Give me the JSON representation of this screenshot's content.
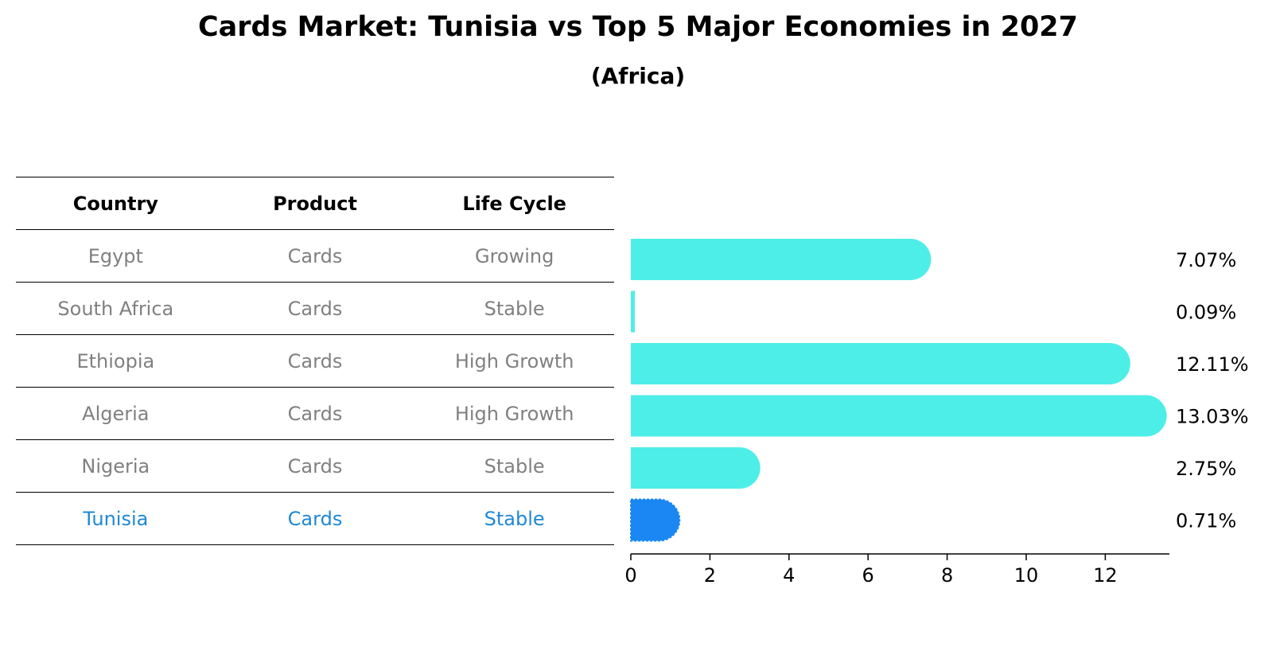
{
  "title": "Cards Market: Tunisia vs Top 5 Major Economies in 2027",
  "subtitle": "(Africa)",
  "table": {
    "headers": [
      "Country",
      "Product",
      "Life Cycle"
    ],
    "rows": [
      [
        "Egypt",
        "Cards",
        "Growing"
      ],
      [
        "South Africa",
        "Cards",
        "Stable"
      ],
      [
        "Ethiopia",
        "Cards",
        "High Growth"
      ],
      [
        "Algeria",
        "Cards",
        "High Growth"
      ],
      [
        "Nigeria",
        "Cards",
        "Stable"
      ],
      [
        "Tunisia",
        "Cards",
        "Stable"
      ]
    ]
  },
  "chart_data": {
    "type": "bar",
    "orientation": "horizontal",
    "categories": [
      "Egypt",
      "South Africa",
      "Ethiopia",
      "Algeria",
      "Nigeria",
      "Tunisia"
    ],
    "values": [
      7.07,
      0.09,
      12.11,
      13.03,
      2.75,
      0.71
    ],
    "value_labels": [
      "7.07%",
      "0.09%",
      "12.11%",
      "13.03%",
      "2.75%",
      "0.71%"
    ],
    "xlim": [
      0,
      13.7
    ],
    "xticks": [
      0,
      2,
      4,
      6,
      8,
      10,
      12
    ],
    "grid": false,
    "colors": {
      "default": "#4eeee8",
      "highlight": "#1a87f2"
    },
    "highlight_index": 5
  }
}
